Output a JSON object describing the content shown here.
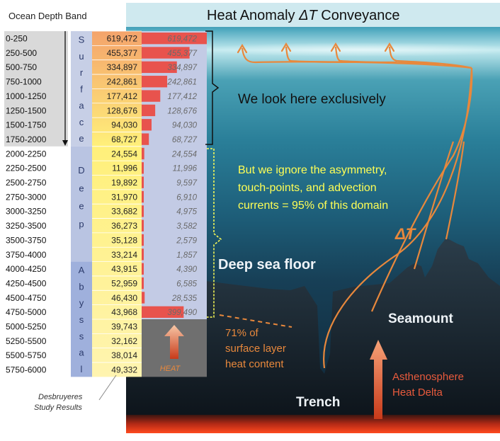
{
  "header": {
    "band_title": "Ocean Depth Band",
    "main_title_prefix": "Heat Anomaly ",
    "main_title_symbol": "ΔT",
    "main_title_suffix": " Conveyance"
  },
  "bands": [
    {
      "range": "0-250",
      "value": "619,472",
      "right": "619,472",
      "fraction": 1.0
    },
    {
      "range": "250-500",
      "value": "455,377",
      "right": "455,377",
      "fraction": 0.735
    },
    {
      "range": "500-750",
      "value": "334,897",
      "right": "334,897",
      "fraction": 0.541
    },
    {
      "range": "750-1000",
      "value": "242,861",
      "right": "242,861",
      "fraction": 0.392
    },
    {
      "range": "1000-1250",
      "value": "177,412",
      "right": "177,412",
      "fraction": 0.286
    },
    {
      "range": "1250-1500",
      "value": "128,676",
      "right": "128,676",
      "fraction": 0.208
    },
    {
      "range": "1500-1750",
      "value": "94,030",
      "right": "94,030",
      "fraction": 0.152
    },
    {
      "range": "1750-2000",
      "value": "68,727",
      "right": "68,727",
      "fraction": 0.111
    },
    {
      "range": "2000-2250",
      "value": "24,554",
      "right": "24,554",
      "fraction": 0.04
    },
    {
      "range": "2250-2500",
      "value": "11,996",
      "right": "11,996",
      "fraction": 0.019
    },
    {
      "range": "2500-2750",
      "value": "19,892",
      "right": "9,597",
      "fraction": 0.015
    },
    {
      "range": "2750-3000",
      "value": "31,970",
      "right": "6,910",
      "fraction": 0.011
    },
    {
      "range": "3000-3250",
      "value": "33,682",
      "right": "4,975",
      "fraction": 0.008
    },
    {
      "range": "3250-3500",
      "value": "36,273",
      "right": "3,582",
      "fraction": 0.006
    },
    {
      "range": "3500-3750",
      "value": "35,128",
      "right": "2,579",
      "fraction": 0.004
    },
    {
      "range": "3750-4000",
      "value": "33,214",
      "right": "1,857",
      "fraction": 0.003
    },
    {
      "range": "4000-4250",
      "value": "43,915",
      "right": "4,390",
      "fraction": 0.007
    },
    {
      "range": "4250-4500",
      "value": "52,959",
      "right": "6,585",
      "fraction": 0.011
    },
    {
      "range": "4500-4750",
      "value": "46,430",
      "right": "28,535",
      "fraction": 0.046
    },
    {
      "range": "4750-5000",
      "value": "43,968",
      "right": "399,490",
      "fraction": 0.645
    },
    {
      "range": "5000-5250",
      "value": "39,743",
      "right": "",
      "fraction": 0
    },
    {
      "range": "5250-5500",
      "value": "32,162",
      "right": "",
      "fraction": 0
    },
    {
      "range": "5500-5750",
      "value": "38,014",
      "right": "",
      "fraction": 0
    },
    {
      "range": "5750-6000",
      "value": "49,332",
      "right": "",
      "fraction": 0
    }
  ],
  "layers": {
    "surface": "Surface",
    "deep": "Deep",
    "abyssal": "Abyssal"
  },
  "heat_label": "HEAT",
  "annotations": {
    "look_here": "We look here exclusively",
    "ignore_line1": "But we ignore the asymmetry,",
    "ignore_line2": "touch-points, and advection",
    "ignore_line3": "currents = 95% of this domain",
    "delta_t": "ΔT",
    "deep_sea_floor": "Deep sea floor",
    "seamount": "Seamount",
    "trench": "Trench",
    "pct_line1": "71% of",
    "pct_line2": "surface layer",
    "pct_line3": "heat content",
    "astheno_line1": "Asthenosphere",
    "astheno_line2": "Heat Delta",
    "credit_line1": "Desbruyeres",
    "credit_line2": "Study Results"
  },
  "colors": {
    "bar_red": "#e8534d",
    "orange": "#e8883c",
    "yellow": "#ffff55"
  }
}
